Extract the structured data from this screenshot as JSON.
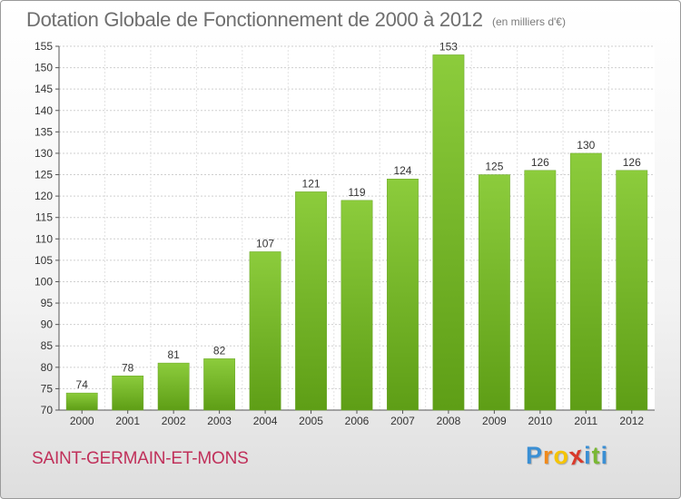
{
  "chart_data": {
    "type": "bar",
    "title": "Dotation Globale de Fonctionnement de 2000 à 2012",
    "unit_note": "(en milliers d'€)",
    "categories": [
      "2000",
      "2001",
      "2002",
      "2003",
      "2004",
      "2005",
      "2006",
      "2007",
      "2008",
      "2009",
      "2010",
      "2011",
      "2012"
    ],
    "values": [
      74,
      78,
      81,
      82,
      107,
      121,
      119,
      124,
      153,
      125,
      126,
      130,
      126
    ],
    "xlabel": "",
    "ylabel": "",
    "ylim": [
      70,
      155
    ],
    "yticks": [
      70,
      75,
      80,
      85,
      90,
      95,
      100,
      105,
      110,
      115,
      120,
      125,
      130,
      135,
      140,
      145,
      150,
      155
    ],
    "grid": true,
    "bar_color": "#8ccc3c",
    "bar_color_dark": "#5e9e16"
  },
  "footer": {
    "commune": "SAINT-GERMAIN-ET-MONS",
    "logo_letters": [
      "P",
      "r",
      "o",
      "x",
      "i",
      "t",
      "i"
    ],
    "logo_colors": [
      "#3a8fd4",
      "#f08a1c",
      "#f5c400",
      "#d93a2b",
      "#3a8fd4",
      "#7ab834",
      "#3a8fd4"
    ]
  }
}
